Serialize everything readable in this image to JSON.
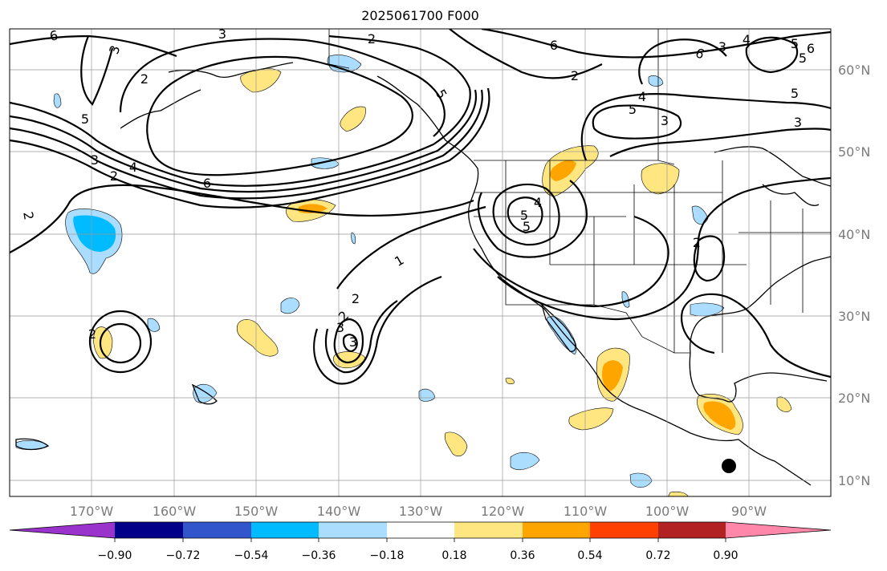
{
  "title": "2025061700 F000",
  "map": {
    "lat_labels": [
      "60°N",
      "50°N",
      "40°N",
      "30°N",
      "20°N",
      "10°N"
    ],
    "lon_labels": [
      "170°W",
      "160°W",
      "150°W",
      "140°W",
      "130°W",
      "120°W",
      "110°W",
      "100°W",
      "90°W"
    ],
    "contour_labels": [
      "6",
      "3",
      "2",
      "6",
      "3",
      "4",
      "2",
      "5",
      "5",
      "3",
      "2",
      "4",
      "6",
      "6",
      "3",
      "6",
      "5",
      "5",
      "5",
      "4",
      "5",
      "3",
      "2",
      "3",
      "4",
      "5",
      "5",
      "1",
      "2",
      "2",
      "3",
      "3",
      "2",
      "2",
      "2"
    ]
  },
  "colorbar": {
    "tick_labels": [
      "−0.90",
      "−0.72",
      "−0.54",
      "−0.36",
      "−0.18",
      "0.18",
      "0.36",
      "0.54",
      "0.72",
      "0.90"
    ],
    "colors": {
      "under": "#9933cc",
      "bins": [
        "#000088",
        "#3355cc",
        "#00bbff",
        "#aaddff",
        "#ffffff",
        "#ffe680",
        "#ffa500",
        "#ff4000",
        "#b22222"
      ],
      "over": "#ff88aa"
    }
  },
  "anomaly_colors": {
    "light_blue": "#aaddff",
    "blue": "#00bbff",
    "yellow": "#ffe680",
    "orange": "#ffa500"
  }
}
